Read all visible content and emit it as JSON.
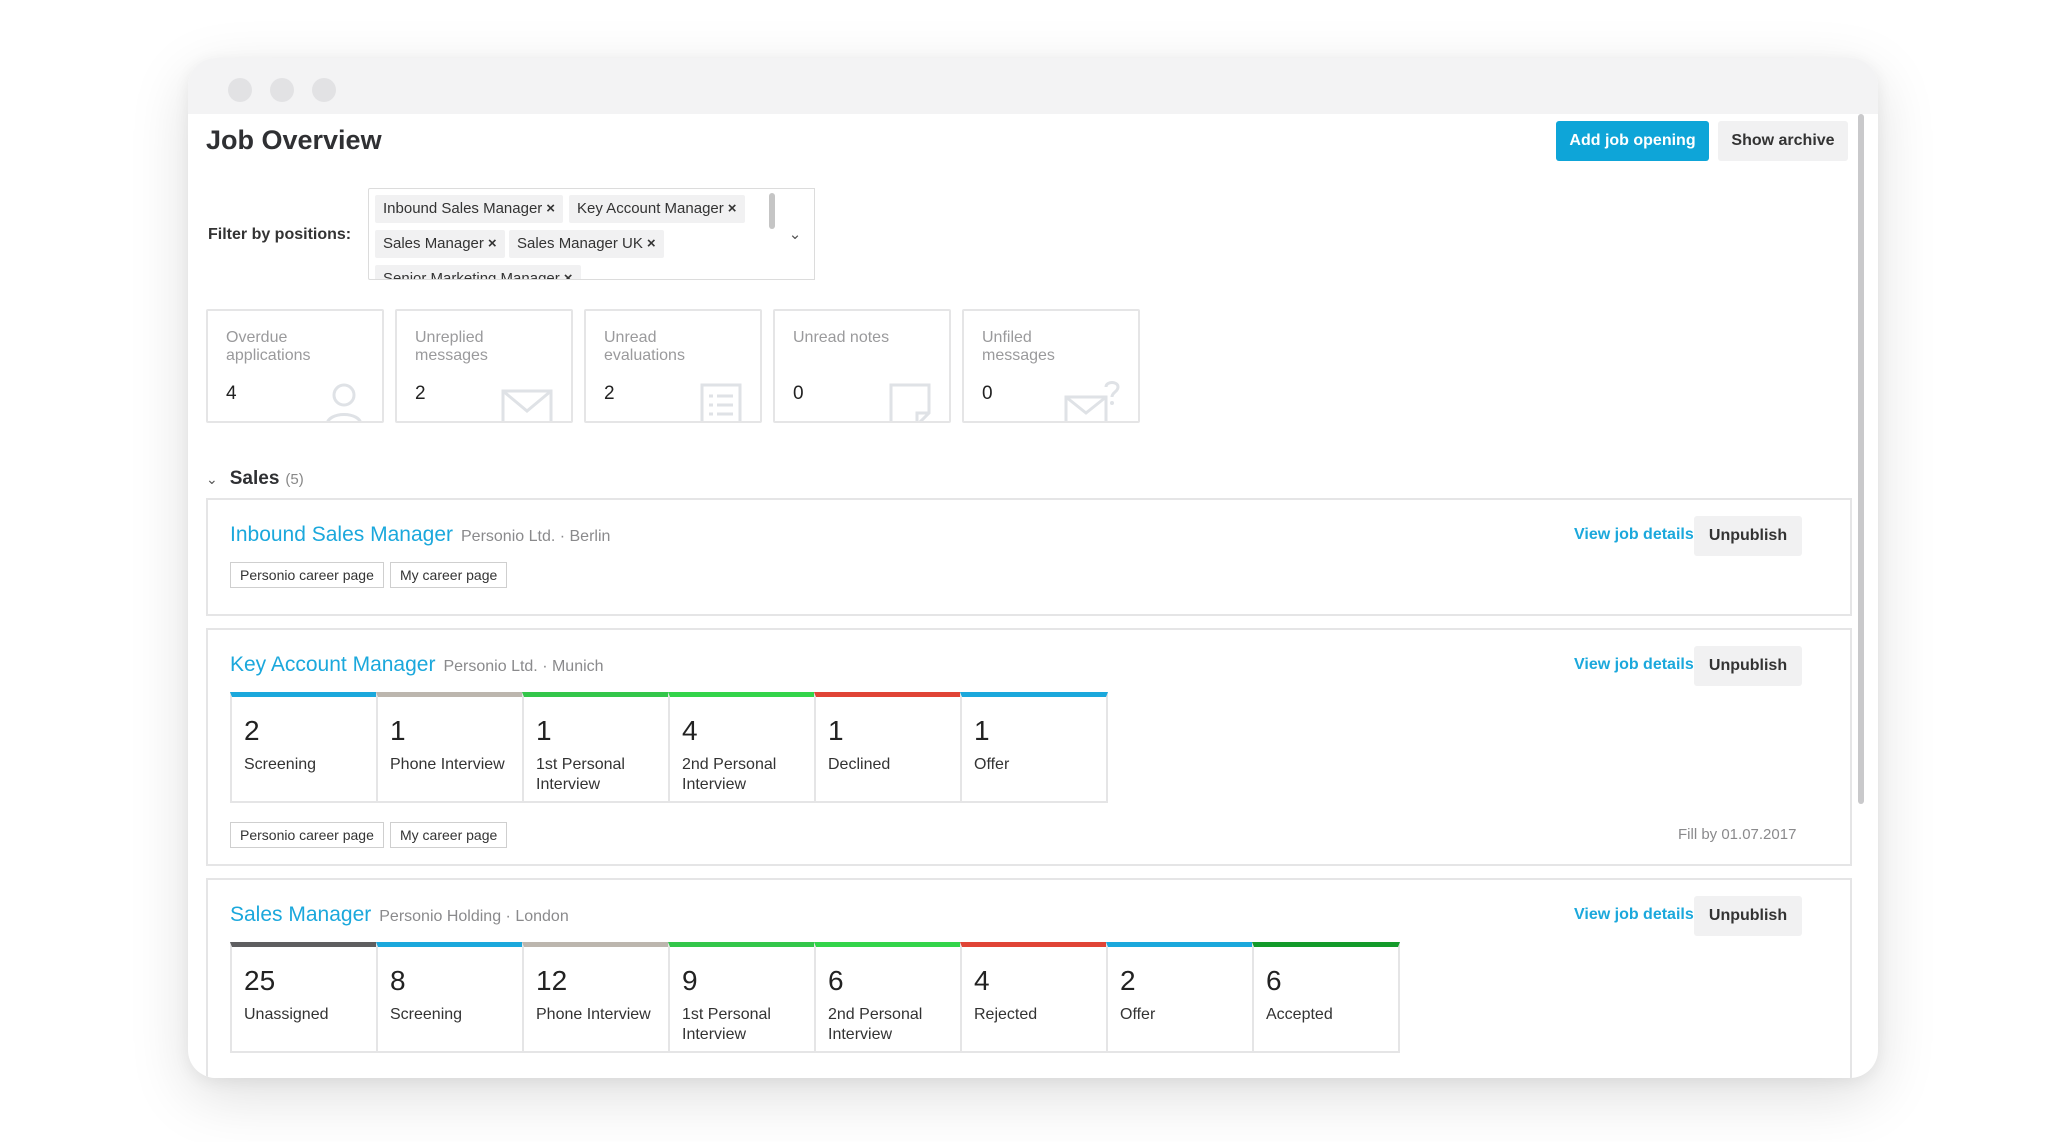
{
  "page_title": "Job Overview",
  "buttons": {
    "add_job": "Add job opening",
    "show_archive": "Show archive"
  },
  "filter": {
    "label": "Filter by positions:",
    "chips": [
      "Inbound Sales Manager",
      "Key Account Manager",
      "Sales Manager",
      "Sales Manager UK",
      "Senior Marketing Manager"
    ],
    "remove_glyph": "×",
    "toggle_glyph": "⌄"
  },
  "stats": [
    {
      "label": "Overdue applications",
      "value": "4",
      "icon": "person-icon"
    },
    {
      "label": "Unreplied messages",
      "value": "2",
      "icon": "envelope-icon"
    },
    {
      "label": "Unread evaluations",
      "value": "2",
      "icon": "list-doc-icon"
    },
    {
      "label": "Unread notes",
      "value": "0",
      "icon": "note-icon"
    },
    {
      "label": "Unfiled messages",
      "value": "0",
      "icon": "envelope-question-icon"
    }
  ],
  "section": {
    "name": "Sales",
    "count": "(5)",
    "chevron": "⌄"
  },
  "jobs": [
    {
      "title": "Inbound Sales Manager",
      "meta": "Personio Ltd. · Berlin",
      "view_label": "View job details",
      "unpublish_label": "Unpublish",
      "tags": [
        "Personio career page",
        "My career page"
      ],
      "stages": []
    },
    {
      "title": "Key Account Manager",
      "meta": "Personio Ltd. · Munich",
      "view_label": "View job details",
      "unpublish_label": "Unpublish",
      "tags": [
        "Personio career page",
        "My career page"
      ],
      "fill_by": "Fill by 01.07.2017",
      "stages": [
        {
          "count": "2",
          "name": "Screening",
          "color": "#1ba8dc"
        },
        {
          "count": "1",
          "name": "Phone Interview",
          "color": "#bcb6ae"
        },
        {
          "count": "1",
          "name": "1st Personal Interview",
          "color": "#33c64a"
        },
        {
          "count": "4",
          "name": "2nd Personal Interview",
          "color": "#33d44a"
        },
        {
          "count": "1",
          "name": "Declined",
          "color": "#e04436"
        },
        {
          "count": "1",
          "name": "Offer",
          "color": "#1ba8dc"
        }
      ]
    },
    {
      "title": "Sales Manager",
      "meta": "Personio Holding · London",
      "view_label": "View job details",
      "unpublish_label": "Unpublish",
      "tags": [],
      "stages": [
        {
          "count": "25",
          "name": "Unassigned",
          "color": "#5e5e60"
        },
        {
          "count": "8",
          "name": "Screening",
          "color": "#1ba8dc"
        },
        {
          "count": "12",
          "name": "Phone Interview",
          "color": "#bcb6ae"
        },
        {
          "count": "9",
          "name": "1st Personal Interview",
          "color": "#33c64a"
        },
        {
          "count": "6",
          "name": "2nd Personal Interview",
          "color": "#33d44a"
        },
        {
          "count": "4",
          "name": "Rejected",
          "color": "#e04436"
        },
        {
          "count": "2",
          "name": "Offer",
          "color": "#1ba8dc"
        },
        {
          "count": "6",
          "name": "Accepted",
          "color": "#139a2a"
        }
      ]
    }
  ]
}
